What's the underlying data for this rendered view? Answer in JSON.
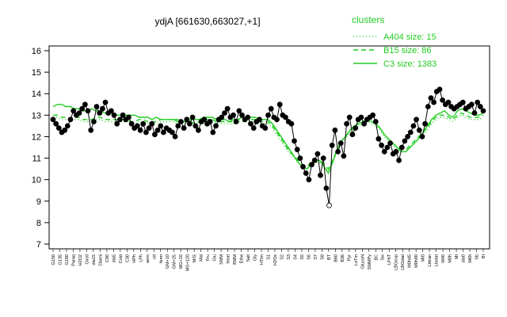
{
  "chart_data": {
    "type": "line",
    "title": "ydjA [661630,663027,+1]",
    "xlabel": "",
    "ylabel": "",
    "ylim": [
      7,
      16
    ],
    "yticks": [
      7,
      8,
      9,
      10,
      11,
      12,
      13,
      14,
      15,
      16
    ],
    "colors": {
      "main": "#000000",
      "clusters": "#22cc22"
    },
    "grid": false,
    "legend": {
      "title": "clusters",
      "position": "top-right",
      "items": [
        {
          "label": "A404 size: 15",
          "style": "dotted"
        },
        {
          "label": "B15 size: 86",
          "style": "dashed"
        },
        {
          "label": "C3 size: 1383",
          "style": "solid"
        }
      ]
    },
    "x_tick_labels": [
      "G150",
      "G135",
      "G180",
      "Paraq",
      "H2O2",
      "Oxctl",
      "dia15",
      "Diami",
      "C90",
      "dia5",
      "Cold",
      "C30",
      "HPh",
      "LPh",
      "aero",
      "nit",
      "ferm",
      "GM+10",
      "GM+25",
      "MG+10",
      "MG+120",
      "M/G",
      "Mal",
      "Fru",
      "Glu",
      "SMM",
      "Heat",
      "BMM",
      "Etha",
      "Salt",
      "Gly",
      "HTim",
      "S1",
      "H2Os",
      "S2",
      "S3",
      "S4",
      "S5",
      "S6",
      "S7",
      "S8",
      "BT",
      "B60",
      "B36",
      "Pyr",
      "LoTm",
      "GlucoN",
      "SMMPy",
      "BC",
      "Sw",
      "LPhT",
      "LBGexp",
      "LBGstat",
      "M0h45",
      "M0h90",
      "Mt0",
      "Lbtran",
      "Lbstat",
      "M40",
      "M0h",
      "Mt",
      "dia0",
      "Mt0t",
      "Sb",
      "BI"
    ],
    "main": {
      "y": [
        12.8,
        12.6,
        12.4,
        12.2,
        12.3,
        12.5,
        12.8,
        13.2,
        13.0,
        13.1,
        13.3,
        13.5,
        13.2,
        12.3,
        12.7,
        13.4,
        13.1,
        13.3,
        13.6,
        13.1,
        13.2,
        13.0,
        12.6,
        12.8,
        13.0,
        12.8,
        12.9,
        12.6,
        12.4,
        12.5,
        12.3,
        12.6,
        12.2,
        12.4,
        12.6,
        12.1,
        12.3,
        12.5,
        12.2,
        12.4,
        12.3,
        12.2,
        12.0,
        12.5,
        12.7,
        12.4,
        12.8,
        12.6,
        12.9,
        12.5,
        12.3,
        12.7,
        12.8,
        12.6,
        12.7,
        12.2,
        12.5,
        12.8,
        12.9,
        13.1,
        13.3,
        12.9,
        13.0,
        12.7,
        13.2,
        13.0,
        12.8,
        12.9,
        12.6,
        12.4,
        12.7,
        12.8,
        12.5,
        12.4,
        13.0,
        13.3,
        12.9,
        12.8,
        13.5,
        13.0,
        12.9,
        12.7,
        12.6,
        11.8,
        11.4,
        11.0,
        10.6,
        10.3,
        10.0,
        10.7,
        10.9,
        11.2,
        10.2,
        11.0,
        9.6,
        8.8,
        11.6,
        12.3,
        11.3,
        11.7,
        11.1,
        12.6,
        12.9,
        12.1,
        12.4,
        12.8,
        12.9,
        12.6,
        12.8,
        12.9,
        13.0,
        12.7,
        11.9,
        11.6,
        11.3,
        11.5,
        11.7,
        11.2,
        11.3,
        10.9,
        11.5,
        11.8,
        12.0,
        12.2,
        12.5,
        12.8,
        12.3,
        12.0,
        12.6,
        13.4,
        13.8,
        13.6,
        14.1,
        14.2,
        13.7,
        13.5,
        13.6,
        13.4,
        13.3,
        13.4,
        13.5,
        13.6,
        13.3,
        13.4,
        13.5,
        13.1,
        13.6,
        13.4,
        13.2
      ]
    },
    "C3": {
      "y": [
        13.4,
        13.5,
        13.5,
        13.4,
        13.4,
        13.3,
        13.3,
        13.2,
        13.2,
        13.3,
        13.2,
        13.2,
        13.1,
        13.1,
        13.1,
        13.0,
        13.0,
        13.0,
        13.0,
        13.0,
        12.9,
        12.9,
        12.9,
        12.8,
        12.9,
        12.8,
        12.8,
        12.8,
        12.8,
        12.8,
        12.7,
        12.7,
        12.8,
        12.8,
        12.8,
        12.9,
        12.9,
        12.9,
        12.8,
        12.8,
        12.8,
        12.7,
        12.8,
        12.8,
        12.9,
        12.9,
        12.9,
        12.9,
        12.8,
        12.8,
        12.8,
        12.6,
        12.3,
        12.0,
        11.7,
        11.4,
        11.1,
        10.8,
        10.6,
        10.5,
        10.7,
        10.9,
        10.9,
        10.6,
        10.3,
        10.8,
        11.4,
        11.8,
        12.0,
        12.3,
        12.5,
        12.6,
        12.7,
        12.8,
        12.7,
        12.6,
        12.4,
        12.1,
        11.9,
        11.7,
        11.5,
        11.3,
        11.3,
        11.5,
        11.7,
        11.9,
        12.2,
        12.5,
        12.8,
        13.0,
        13.1,
        13.2,
        13.0,
        12.9,
        13.2,
        13.3,
        13.2,
        13.1,
        13.0,
        13.0,
        13.1
      ]
    },
    "B15": {
      "y": [
        13.0,
        13.0,
        12.9,
        12.9,
        12.8,
        12.9,
        12.9,
        12.8,
        12.8,
        12.8,
        12.9,
        12.9,
        12.8,
        12.8,
        12.8,
        12.8,
        12.8,
        12.8,
        12.7,
        12.7,
        12.8,
        12.8,
        12.7,
        12.7,
        12.7,
        12.8,
        12.8,
        12.8,
        12.8,
        12.7,
        12.7,
        12.7,
        12.7,
        12.6,
        12.7,
        12.7,
        12.8,
        12.8,
        12.7,
        12.7,
        12.7,
        12.7,
        12.7,
        12.8,
        12.8,
        12.8,
        12.8,
        12.8,
        12.7,
        12.7,
        12.7,
        12.5,
        12.2,
        11.9,
        11.6,
        11.3,
        11.1,
        10.9,
        10.7,
        10.6,
        10.8,
        10.9,
        10.9,
        10.7,
        10.5,
        10.9,
        11.4,
        11.8,
        12.0,
        12.3,
        12.5,
        12.6,
        12.7,
        12.8,
        12.7,
        12.6,
        12.4,
        12.1,
        11.9,
        11.7,
        11.5,
        11.4,
        11.4,
        11.6,
        11.8,
        12.0,
        12.2,
        12.4,
        12.7,
        12.9,
        13.0,
        13.0,
        12.9,
        12.8,
        13.0,
        13.1,
        13.0,
        12.9,
        12.9,
        12.9,
        13.0
      ]
    },
    "A404": {
      "y": [
        12.9,
        12.9,
        12.8,
        12.8,
        12.8,
        12.8,
        12.8,
        12.7,
        12.7,
        12.8,
        12.8,
        12.8,
        12.7,
        12.7,
        12.7,
        12.7,
        12.7,
        12.7,
        12.7,
        12.6,
        12.7,
        12.7,
        12.6,
        12.6,
        12.6,
        12.7,
        12.7,
        12.7,
        12.7,
        12.6,
        12.6,
        12.6,
        12.6,
        12.5,
        12.6,
        12.6,
        12.7,
        12.7,
        12.6,
        12.6,
        12.6,
        12.6,
        12.6,
        12.7,
        12.7,
        12.7,
        12.7,
        12.7,
        12.6,
        12.6,
        12.6,
        12.4,
        12.1,
        11.8,
        11.5,
        11.2,
        11.0,
        10.8,
        10.6,
        10.5,
        10.7,
        10.8,
        10.8,
        10.6,
        10.4,
        10.8,
        11.3,
        11.7,
        11.9,
        12.2,
        12.4,
        12.5,
        12.6,
        12.7,
        12.6,
        12.5,
        12.3,
        12.0,
        11.8,
        11.6,
        11.4,
        11.3,
        11.3,
        11.5,
        11.7,
        11.9,
        12.1,
        12.3,
        12.6,
        12.8,
        12.9,
        12.9,
        12.8,
        12.7,
        12.9,
        13.0,
        12.9,
        12.8,
        12.8,
        12.8,
        12.9
      ]
    }
  }
}
